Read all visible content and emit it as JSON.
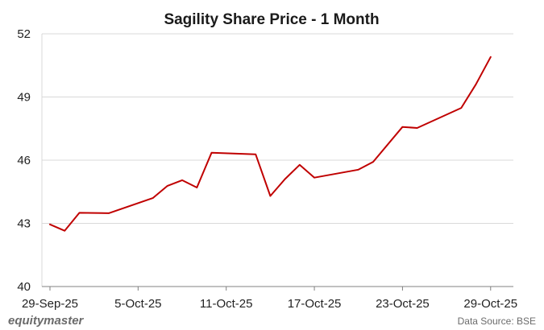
{
  "chart_data": {
    "type": "line",
    "title": "Sagility Share Price - 1 Month",
    "xlabel": "",
    "ylabel": "",
    "ylim": [
      40,
      52
    ],
    "y_ticks": [
      "40",
      "43",
      "46",
      "49",
      "52"
    ],
    "x_ticks": [
      "29-Sep-25",
      "5-Oct-25",
      "11-Oct-25",
      "17-Oct-25",
      "23-Oct-25",
      "29-Oct-25"
    ],
    "x_tick_dates": [
      "2025-09-29",
      "2025-10-05",
      "2025-10-11",
      "2025-10-17",
      "2025-10-23",
      "2025-10-29"
    ],
    "x_range": [
      "2025-09-29",
      "2025-10-30"
    ],
    "grid": "horizontal",
    "legend": "none",
    "series": [
      {
        "color": "#c00000",
        "x": [
          "2025-09-29",
          "2025-09-30",
          "2025-10-01",
          "2025-10-03",
          "2025-10-06",
          "2025-10-07",
          "2025-10-08",
          "2025-10-09",
          "2025-10-10",
          "2025-10-13",
          "2025-10-14",
          "2025-10-15",
          "2025-10-16",
          "2025-10-17",
          "2025-10-20",
          "2025-10-21",
          "2025-10-23",
          "2025-10-24",
          "2025-10-27",
          "2025-10-28",
          "2025-10-29"
        ],
        "values": [
          42.95,
          42.65,
          43.5,
          43.48,
          44.2,
          44.78,
          45.05,
          44.7,
          46.35,
          46.28,
          44.3,
          45.1,
          45.78,
          45.17,
          45.55,
          45.92,
          47.58,
          47.53,
          48.48,
          49.6,
          50.9
        ]
      }
    ]
  },
  "footer": {
    "brand": "equitymaster",
    "source": "Data Source: BSE"
  }
}
